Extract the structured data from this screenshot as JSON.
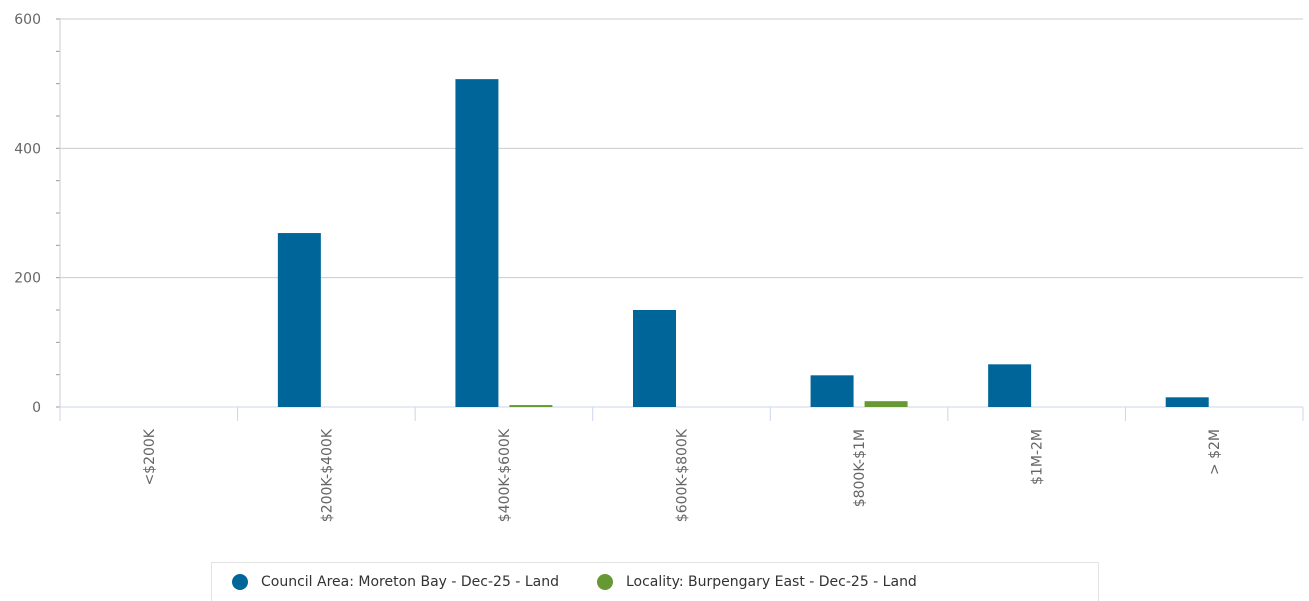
{
  "chart_data": {
    "type": "bar",
    "title": "",
    "xlabel": "",
    "ylabel": "",
    "categories": [
      "<$200K",
      "$200K-$400K",
      "$400K-$600K",
      "$600K-$800K",
      "$800K-$1M",
      "$1M-2M",
      "> $2M"
    ],
    "ylim": [
      0,
      600
    ],
    "yticks": [
      0,
      200,
      400,
      600
    ],
    "grid": true,
    "legend_position": "bottom",
    "series": [
      {
        "name": "Council Area: Moreton Bay - Dec-25 - Land",
        "color": "#006699",
        "values": [
          0,
          269,
          507,
          150,
          49,
          66,
          15
        ]
      },
      {
        "name": "Locality: Burpengary East - Dec-25 - Land",
        "color": "#669933",
        "values": [
          0,
          0,
          3,
          0,
          9,
          0,
          0
        ]
      }
    ]
  }
}
